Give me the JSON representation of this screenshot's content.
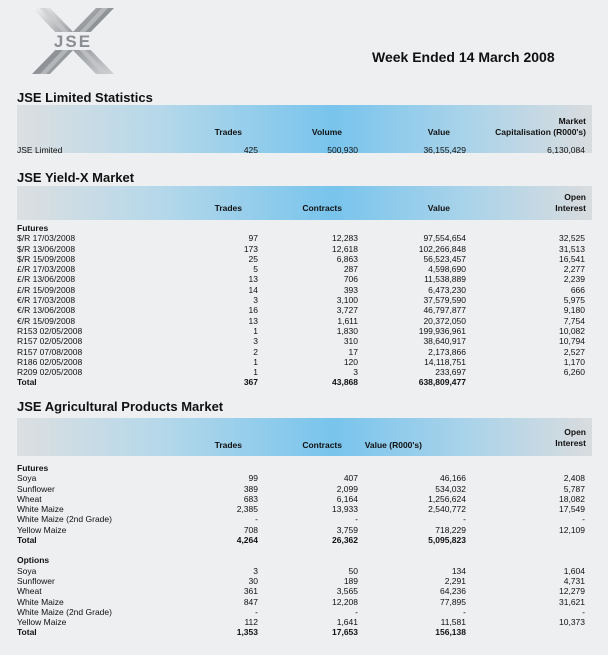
{
  "logo": {
    "text": "JSE"
  },
  "week_title": "Week Ended 14 March 2008",
  "colors": {
    "band_accent": "#78c4ec",
    "background": "#eeeff0"
  },
  "jse_limited": {
    "title": "JSE Limited Statistics",
    "headers": [
      "Trades",
      "Volume",
      "Value",
      "Market",
      "Capitalisation (R000's)"
    ],
    "rows": [
      {
        "label": "JSE Limited",
        "cells": [
          "425",
          "500,930",
          "36,155,429",
          "6,130,084"
        ]
      }
    ]
  },
  "yieldx": {
    "title": "JSE Yield-X Market",
    "headers": [
      "Trades",
      "Contracts",
      "Value",
      "Open",
      "Interest"
    ],
    "groups": [
      {
        "title": "Futures",
        "rows": [
          {
            "label": "$/R   17/03/2008",
            "cells": [
              "97",
              "12,283",
              "97,554,654",
              "32,525"
            ]
          },
          {
            "label": "$/R   13/06/2008",
            "cells": [
              "173",
              "12,618",
              "102,266,848",
              "31,513"
            ]
          },
          {
            "label": "$/R   15/09/2008",
            "cells": [
              "25",
              "6,863",
              "56,523,457",
              "16,541"
            ]
          },
          {
            "label": "£/R   17/03/2008",
            "cells": [
              "5",
              "287",
              "4,598,690",
              "2,277"
            ]
          },
          {
            "label": "£/R   13/06/2008",
            "cells": [
              "13",
              "706",
              "11,538,889",
              "2,239"
            ]
          },
          {
            "label": "£/R   15/09/2008",
            "cells": [
              "14",
              "393",
              "6,473,230",
              "666"
            ]
          },
          {
            "label": "€/R   17/03/2008",
            "cells": [
              "3",
              "3,100",
              "37,579,590",
              "5,975"
            ]
          },
          {
            "label": "€/R   13/06/2008",
            "cells": [
              "16",
              "3,727",
              "46,797,877",
              "9,180"
            ]
          },
          {
            "label": "€/R   15/09/2008",
            "cells": [
              "13",
              "1,611",
              "20,372,050",
              "7,754"
            ]
          },
          {
            "label": "R153 02/05/2008",
            "cells": [
              "1",
              "1,830",
              "199,936,961",
              "10,082"
            ]
          },
          {
            "label": "R157 02/05/2008",
            "cells": [
              "3",
              "310",
              "38,640,917",
              "10,794"
            ]
          },
          {
            "label": "R157 07/08/2008",
            "cells": [
              "2",
              "17",
              "2,173,866",
              "2,527"
            ]
          },
          {
            "label": "R186 02/05/2008",
            "cells": [
              "1",
              "120",
              "14,118,751",
              "1,170"
            ]
          },
          {
            "label": "R209 02/05/2008",
            "cells": [
              "1",
              "3",
              "233,697",
              "6,260"
            ]
          }
        ],
        "total": {
          "label": "Total",
          "cells": [
            "367",
            "43,868",
            "638,809,477",
            ""
          ]
        }
      }
    ]
  },
  "agri": {
    "title": "JSE Agricultural Products Market",
    "headers": [
      "Trades",
      "Contracts",
      "Value  (R000's)",
      "Open",
      "Interest"
    ],
    "groups": [
      {
        "title": "Futures",
        "rows": [
          {
            "label": "Soya",
            "cells": [
              "99",
              "407",
              "46,166",
              "2,408"
            ]
          },
          {
            "label": "Sunflower",
            "cells": [
              "389",
              "2,099",
              "534,032",
              "5,787"
            ]
          },
          {
            "label": "Wheat",
            "cells": [
              "683",
              "6,164",
              "1,256,624",
              "18,082"
            ]
          },
          {
            "label": "White Maize",
            "cells": [
              "2,385",
              "13,933",
              "2,540,772",
              "17,549"
            ]
          },
          {
            "label": "White Maize (2nd Grade)",
            "cells": [
              "-",
              "-",
              "-",
              "-"
            ]
          },
          {
            "label": "Yellow Maize",
            "cells": [
              "708",
              "3,759",
              "718,229",
              "12,109"
            ]
          }
        ],
        "total": {
          "label": "Total",
          "cells": [
            "4,264",
            "26,362",
            "5,095,823",
            ""
          ]
        }
      },
      {
        "title": "Options",
        "rows": [
          {
            "label": "Soya",
            "cells": [
              "3",
              "50",
              "134",
              "1,604"
            ]
          },
          {
            "label": "Sunflower",
            "cells": [
              "30",
              "189",
              "2,291",
              "4,731"
            ]
          },
          {
            "label": "Wheat",
            "cells": [
              "361",
              "3,565",
              "64,236",
              "12,279"
            ]
          },
          {
            "label": "White Maize",
            "cells": [
              "847",
              "12,208",
              "77,895",
              "31,621"
            ]
          },
          {
            "label": "White Maize (2nd Grade)",
            "cells": [
              "-",
              "-",
              "-",
              "-"
            ]
          },
          {
            "label": "Yellow Maize",
            "cells": [
              "112",
              "1,641",
              "11,581",
              "10,373"
            ]
          }
        ],
        "total": {
          "label": "Total",
          "cells": [
            "1,353",
            "17,653",
            "156,138",
            ""
          ]
        }
      }
    ]
  }
}
